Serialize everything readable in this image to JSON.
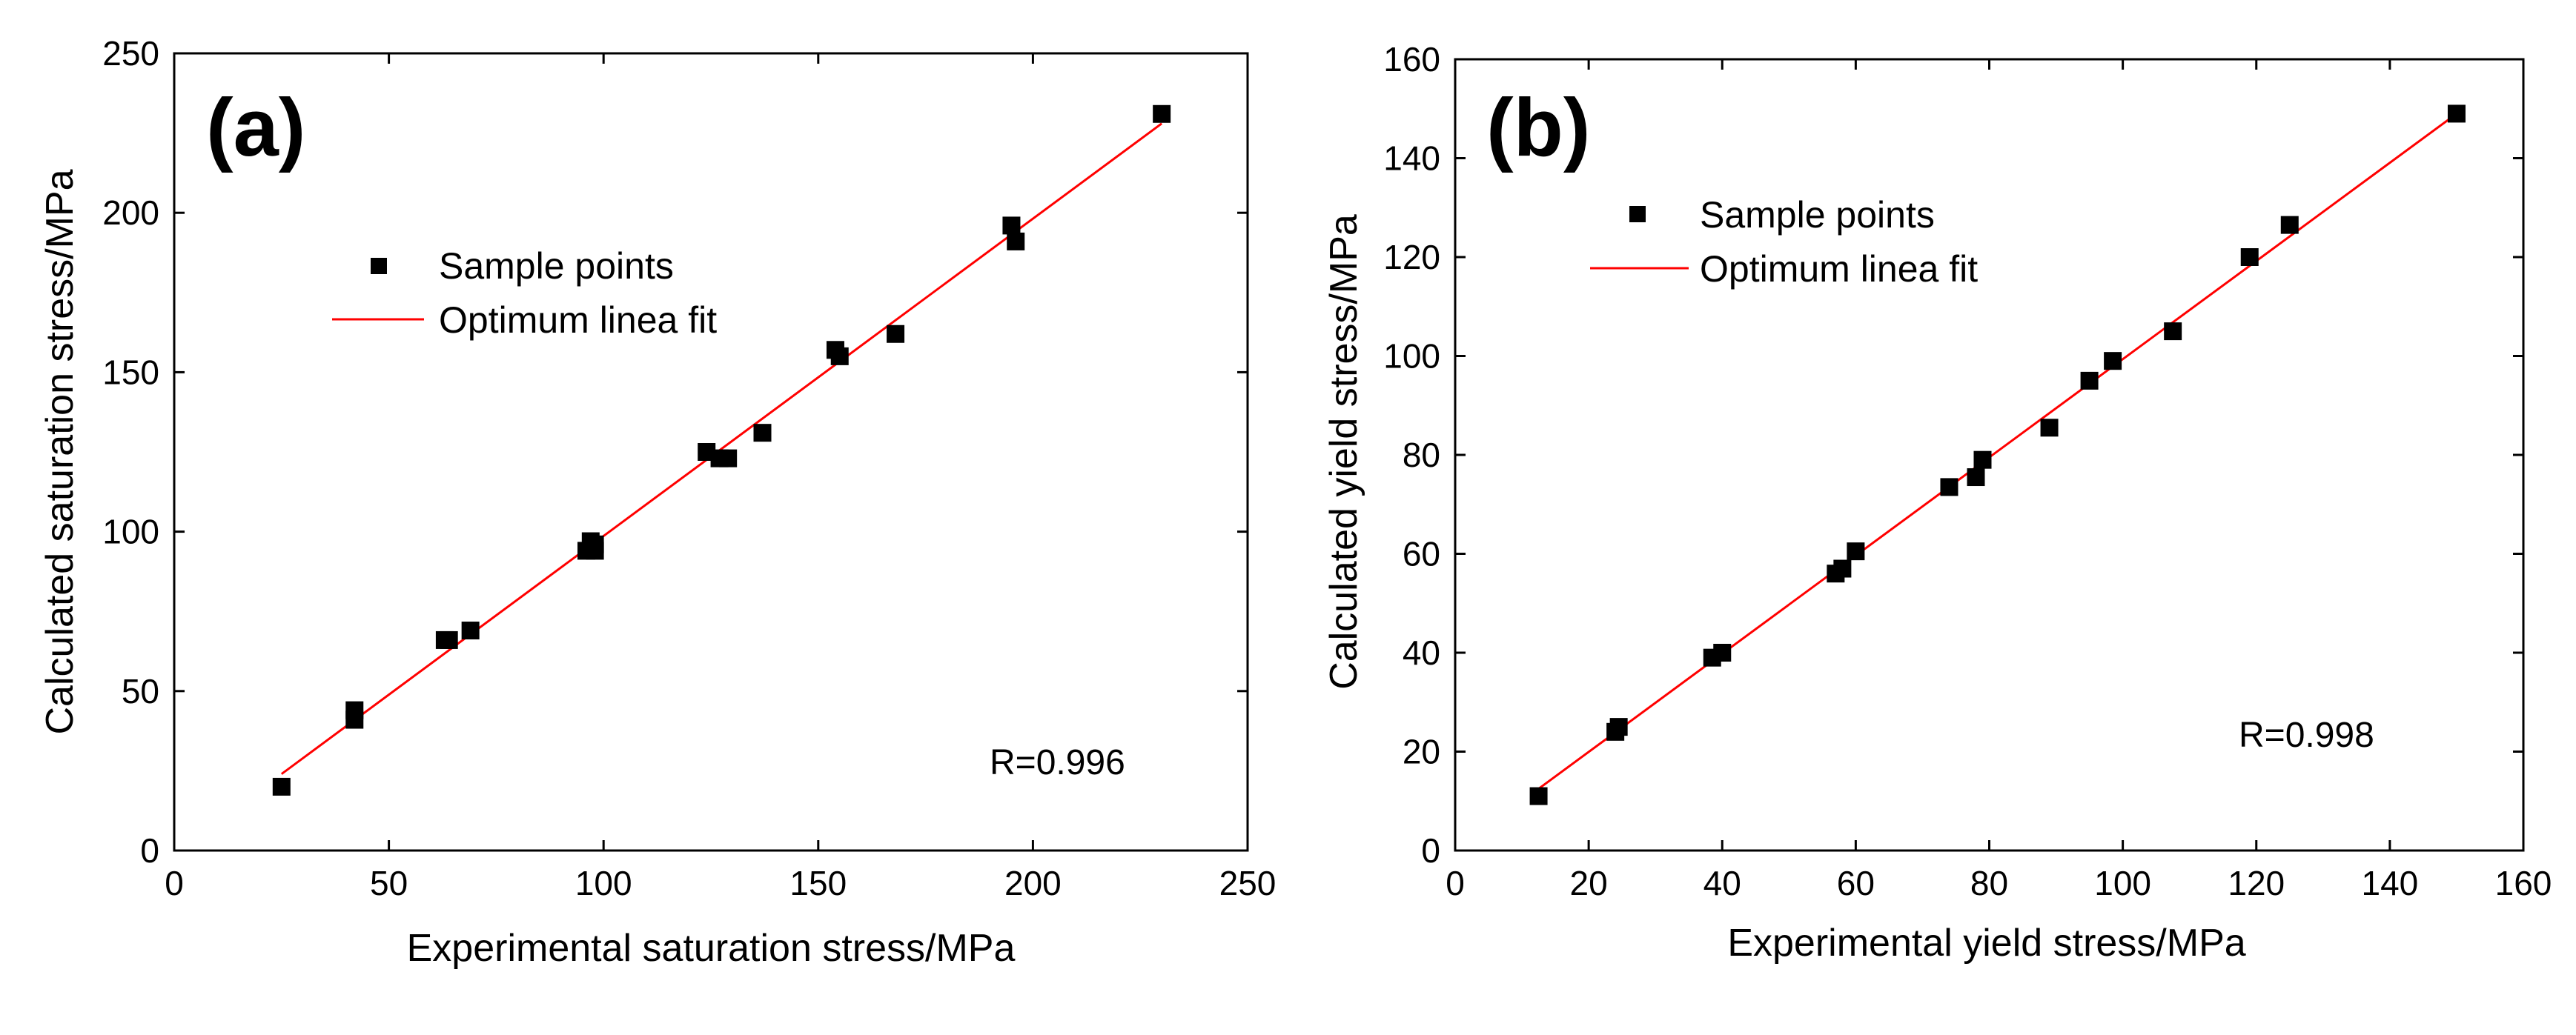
{
  "chart_data": [
    {
      "type": "scatter",
      "panel_label": "(a)",
      "xlabel": "Experimental saturation stress/MPa",
      "ylabel": "Calculated saturation stress/MPa",
      "xlim": [
        0,
        250
      ],
      "ylim": [
        0,
        250
      ],
      "xticks": [
        0,
        50,
        100,
        150,
        200,
        250
      ],
      "yticks": [
        0,
        50,
        100,
        150,
        200,
        250
      ],
      "legend": {
        "position": "upper-left",
        "points_label": "Sample points",
        "fit_label": "Optimum linea fit"
      },
      "annotation": "R=0.996",
      "fit": {
        "x": [
          25,
          230
        ],
        "y": [
          24,
          228
        ]
      },
      "points": {
        "x": [
          25,
          42,
          42,
          63,
          64,
          69,
          96,
          97,
          98,
          98,
          124,
          127,
          129,
          137,
          154,
          155,
          168,
          195,
          196,
          230
        ],
        "y": [
          20,
          41,
          44,
          66,
          66,
          69,
          94,
          97,
          94,
          96,
          125,
          123,
          123,
          131,
          157,
          155,
          162,
          196,
          191,
          231
        ]
      },
      "colors": {
        "points": "#000000",
        "fit": "#ff0000"
      }
    },
    {
      "type": "scatter",
      "panel_label": "(b)",
      "xlabel": "Experimental yield stress/MPa",
      "ylabel": "Calculated yield stress/MPa",
      "xlim": [
        0,
        160
      ],
      "ylim": [
        0,
        160
      ],
      "xticks": [
        0,
        20,
        40,
        60,
        80,
        100,
        120,
        140,
        160
      ],
      "yticks": [
        0,
        20,
        40,
        60,
        80,
        100,
        120,
        140,
        160
      ],
      "legend": {
        "position": "upper-left",
        "points_label": "Sample points",
        "fit_label": "Optimum linea fit"
      },
      "annotation": "R=0.998",
      "fit": {
        "x": [
          12,
          150
        ],
        "y": [
          12,
          149
        ]
      },
      "points": {
        "x": [
          12.5,
          24,
          24.5,
          38.5,
          40,
          57,
          58,
          60,
          74,
          78,
          79,
          89,
          95,
          98.5,
          107.5,
          119,
          125,
          150
        ],
        "y": [
          11,
          24,
          25,
          39,
          40,
          56,
          57,
          60.5,
          73.5,
          75.5,
          79,
          85.5,
          95,
          99,
          105,
          120,
          126.5,
          149
        ]
      },
      "colors": {
        "points": "#000000",
        "fit": "#ff0000"
      }
    }
  ]
}
